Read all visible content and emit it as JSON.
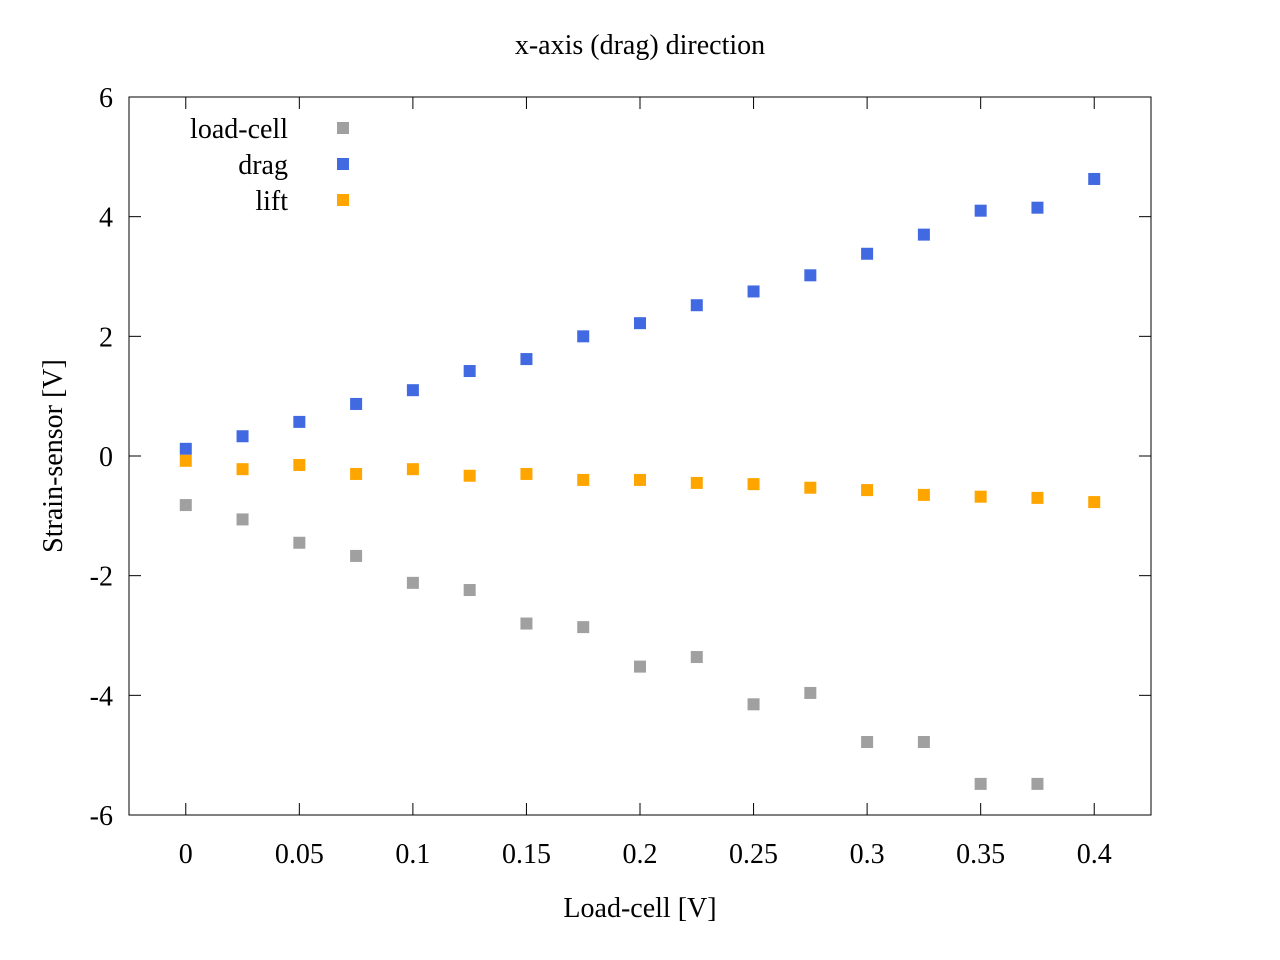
{
  "chart_data": {
    "type": "scatter",
    "title": "x-axis (drag) direction",
    "xlabel": "Load-cell [V]",
    "ylabel": "Strain-sensor [V]",
    "xlim": [
      -0.025,
      0.425
    ],
    "ylim": [
      -6,
      6
    ],
    "xticks": [
      0,
      0.05,
      0.1,
      0.15,
      0.2,
      0.25,
      0.3,
      0.35,
      0.4
    ],
    "xtick_labels": [
      "0",
      "0.05",
      "0.1",
      "0.15",
      "0.2",
      "0.25",
      "0.3",
      "0.35",
      "0.4"
    ],
    "yticks": [
      -6,
      -4,
      -2,
      0,
      2,
      4,
      6
    ],
    "ytick_labels": [
      "-6",
      "-4",
      "-2",
      "0",
      "2",
      "4",
      "6"
    ],
    "grid": false,
    "legend_position": "top-left",
    "marker": "square",
    "series": [
      {
        "name": "load-cell",
        "color": "#a0a0a0",
        "x": [
          0,
          0.025,
          0.05,
          0.075,
          0.1,
          0.125,
          0.15,
          0.175,
          0.2,
          0.225,
          0.25,
          0.275,
          0.3,
          0.325,
          0.35,
          0.375
        ],
        "y": [
          -0.82,
          -1.06,
          -1.45,
          -1.67,
          -2.12,
          -2.24,
          -2.8,
          -2.86,
          -3.52,
          -3.36,
          -4.15,
          -3.96,
          -4.78,
          -4.78,
          -5.48,
          -5.48
        ]
      },
      {
        "name": "drag",
        "color": "#4169e1",
        "x": [
          0,
          0.025,
          0.05,
          0.075,
          0.1,
          0.125,
          0.15,
          0.175,
          0.2,
          0.225,
          0.25,
          0.275,
          0.3,
          0.325,
          0.35,
          0.375,
          0.4
        ],
        "y": [
          0.12,
          0.33,
          0.57,
          0.87,
          1.1,
          1.42,
          1.62,
          2.0,
          2.22,
          2.52,
          2.75,
          3.02,
          3.38,
          3.7,
          4.1,
          4.15,
          4.63
        ]
      },
      {
        "name": "lift",
        "color": "#ffa500",
        "x": [
          0,
          0.025,
          0.05,
          0.075,
          0.1,
          0.125,
          0.15,
          0.175,
          0.2,
          0.225,
          0.25,
          0.275,
          0.3,
          0.325,
          0.35,
          0.375,
          0.4
        ],
        "y": [
          -0.08,
          -0.22,
          -0.15,
          -0.3,
          -0.22,
          -0.33,
          -0.3,
          -0.4,
          -0.4,
          -0.45,
          -0.47,
          -0.53,
          -0.57,
          -0.65,
          -0.68,
          -0.7,
          -0.77
        ]
      }
    ]
  }
}
